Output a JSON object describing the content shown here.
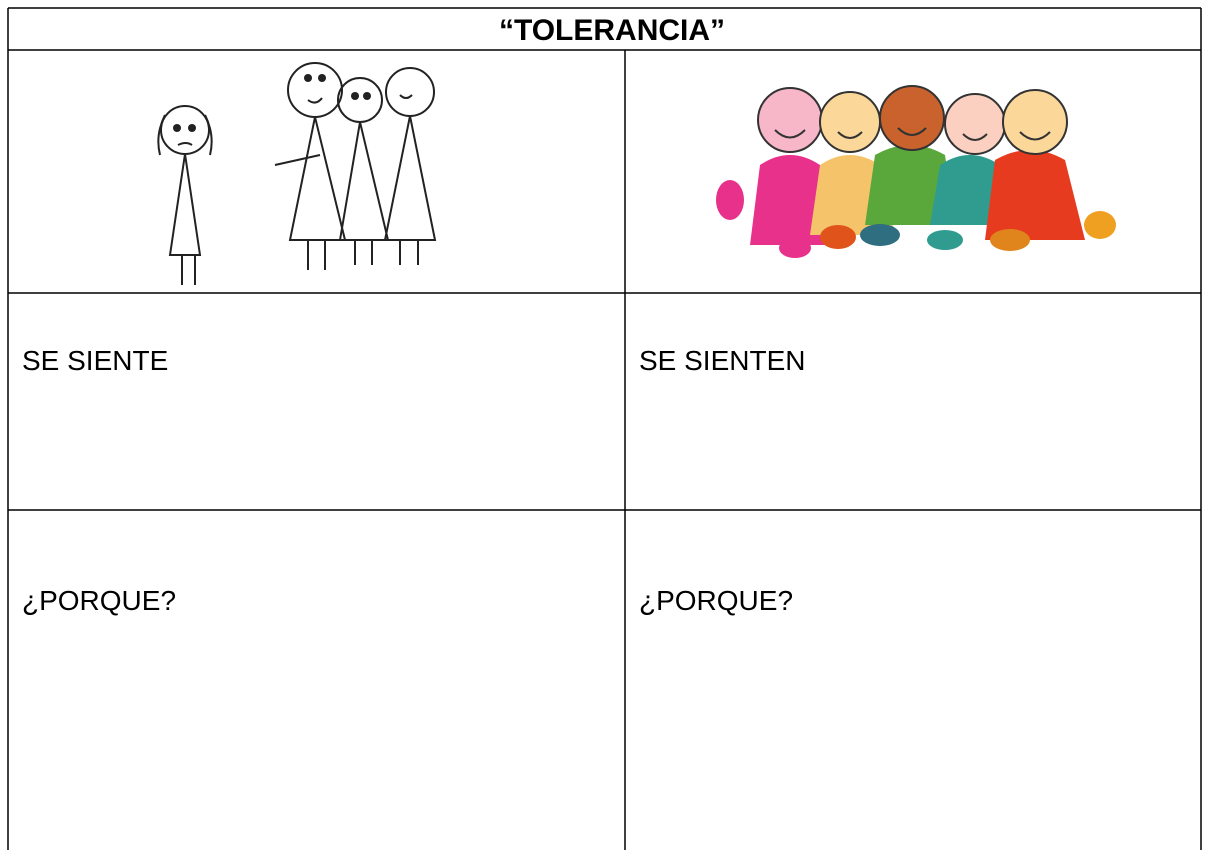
{
  "table": {
    "title": "“TOLERANCIA”",
    "rows": [
      [
        "SE SIENTE",
        "SE SIENTEN"
      ],
      [
        "¿PORQUE?",
        "¿PORQUE?"
      ]
    ]
  }
}
